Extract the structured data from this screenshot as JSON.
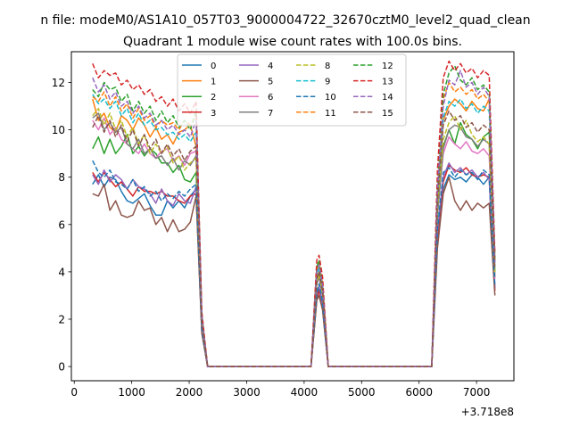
{
  "chart_data": {
    "type": "line",
    "suptitle": "n file: modeM0/AS1A10_057T03_9000004722_32670cztM0_level2_quad_clean",
    "title": "Quadrant 1 module wise count rates with 100.0s bins.",
    "xlabel": "",
    "ylabel": "",
    "x_offset_label": "+3.718e8",
    "xlim": [
      -50,
      7650
    ],
    "ylim": [
      -0.6,
      13.3
    ],
    "x_ticks": [
      0,
      1000,
      2000,
      3000,
      4000,
      5000,
      6000,
      7000
    ],
    "y_ticks": [
      0,
      2,
      4,
      6,
      8,
      10,
      12
    ],
    "grid": false,
    "legend": {
      "placement": "top-center",
      "columns": 4
    },
    "x": [
      320,
      420,
      520,
      620,
      720,
      820,
      920,
      1020,
      1120,
      1220,
      1320,
      1420,
      1520,
      1620,
      1720,
      1820,
      1920,
      2020,
      2120,
      2220,
      2320,
      2420,
      2520,
      2620,
      2720,
      2820,
      2920,
      3020,
      3120,
      3220,
      3320,
      3420,
      3520,
      3620,
      3720,
      3820,
      3920,
      4020,
      4120,
      4220,
      4260,
      4320,
      4420,
      4520,
      4620,
      4720,
      4820,
      4920,
      5020,
      5120,
      5220,
      5320,
      5420,
      5520,
      5620,
      5720,
      5820,
      5920,
      6020,
      6120,
      6220,
      6320,
      6420,
      6520,
      6620,
      6720,
      6820,
      6920,
      7020,
      7120,
      7220,
      7320
    ],
    "series": [
      {
        "name": "0",
        "color": "#1f77b4",
        "dash": "solid",
        "values": [
          7.7,
          8.1,
          7.6,
          8.0,
          7.9,
          7.4,
          7.0,
          6.9,
          7.1,
          7.3,
          6.8,
          6.4,
          6.4,
          7.0,
          6.7,
          7.0,
          6.7,
          7.2,
          7.5,
          1.5,
          0,
          0,
          0,
          0,
          0,
          0,
          0,
          0,
          0,
          0,
          0,
          0,
          0,
          0,
          0,
          0,
          0,
          0,
          0,
          3.0,
          3.3,
          2.7,
          0,
          0,
          0,
          0,
          0,
          0,
          0,
          0,
          0,
          0,
          0,
          0,
          0,
          0,
          0,
          0,
          0,
          0,
          0,
          5.5,
          7.5,
          8.1,
          7.9,
          8.0,
          7.8,
          8.1,
          8.0,
          7.7,
          8.0,
          3.3
        ]
      },
      {
        "name": "1",
        "color": "#ff7f0e",
        "dash": "solid",
        "values": [
          11.3,
          10.4,
          10.7,
          10.1,
          9.9,
          10.6,
          10.4,
          10.0,
          10.5,
          10.2,
          9.7,
          10.1,
          9.6,
          9.8,
          9.4,
          9.9,
          10.0,
          10.2,
          9.3,
          2.0,
          0,
          0,
          0,
          0,
          0,
          0,
          0,
          0,
          0,
          0,
          0,
          0,
          0,
          0,
          0,
          0,
          0,
          0,
          0,
          4.0,
          4.3,
          3.5,
          0,
          0,
          0,
          0,
          0,
          0,
          0,
          0,
          0,
          0,
          0,
          0,
          0,
          0,
          0,
          0,
          0,
          0,
          0,
          7.0,
          10.4,
          11.0,
          11.3,
          11.1,
          10.8,
          11.2,
          10.9,
          10.8,
          11.3,
          4.4
        ]
      },
      {
        "name": "2",
        "color": "#2ca02c",
        "dash": "solid",
        "values": [
          9.2,
          9.7,
          9.0,
          9.6,
          9.0,
          9.3,
          9.8,
          9.0,
          9.3,
          8.9,
          9.2,
          9.0,
          8.6,
          8.6,
          8.2,
          8.5,
          7.9,
          7.8,
          8.2,
          1.9,
          0,
          0,
          0,
          0,
          0,
          0,
          0,
          0,
          0,
          0,
          0,
          0,
          0,
          0,
          0,
          0,
          0,
          0,
          0,
          3.7,
          4.0,
          3.2,
          0,
          0,
          0,
          0,
          0,
          0,
          0,
          0,
          0,
          0,
          0,
          0,
          0,
          0,
          0,
          0,
          0,
          0,
          0,
          6.4,
          9.3,
          10.0,
          9.4,
          10.3,
          9.8,
          9.6,
          9.2,
          9.7,
          9.9,
          4.0
        ]
      },
      {
        "name": "3",
        "color": "#d62728",
        "dash": "solid",
        "values": [
          8.2,
          7.8,
          8.2,
          7.9,
          7.6,
          7.8,
          7.5,
          7.2,
          7.6,
          7.4,
          7.4,
          7.3,
          7.4,
          7.2,
          7.2,
          7.0,
          6.9,
          7.2,
          7.3,
          1.5,
          0,
          0,
          0,
          0,
          0,
          0,
          0,
          0,
          0,
          0,
          0,
          0,
          0,
          0,
          0,
          0,
          0,
          0,
          0,
          2.9,
          3.2,
          2.5,
          0,
          0,
          0,
          0,
          0,
          0,
          0,
          0,
          0,
          0,
          0,
          0,
          0,
          0,
          0,
          0,
          0,
          0,
          0,
          5.5,
          7.8,
          8.5,
          8.3,
          8.2,
          8.4,
          8.1,
          8.0,
          8.1,
          8.0,
          3.2
        ]
      },
      {
        "name": "4",
        "color": "#9467bd",
        "dash": "solid",
        "values": [
          8.1,
          7.7,
          8.3,
          7.8,
          8.1,
          7.9,
          7.5,
          7.9,
          7.6,
          7.5,
          7.3,
          6.9,
          7.5,
          7.0,
          6.8,
          7.3,
          7.0,
          6.9,
          7.6,
          1.6,
          0,
          0,
          0,
          0,
          0,
          0,
          0,
          0,
          0,
          0,
          0,
          0,
          0,
          0,
          0,
          0,
          0,
          0,
          0,
          3.1,
          3.4,
          2.6,
          0,
          0,
          0,
          0,
          0,
          0,
          0,
          0,
          0,
          0,
          0,
          0,
          0,
          0,
          0,
          0,
          0,
          0,
          0,
          5.7,
          8.0,
          8.6,
          8.2,
          8.4,
          8.1,
          8.3,
          8.0,
          8.2,
          7.9,
          3.3
        ]
      },
      {
        "name": "5",
        "color": "#8c564b",
        "dash": "solid",
        "values": [
          7.3,
          7.2,
          7.7,
          6.6,
          7.0,
          6.4,
          6.3,
          6.4,
          7.0,
          6.6,
          6.7,
          6.0,
          6.3,
          5.7,
          6.2,
          5.7,
          5.8,
          6.1,
          7.2,
          1.4,
          0,
          0,
          0,
          0,
          0,
          0,
          0,
          0,
          0,
          0,
          0,
          0,
          0,
          0,
          0,
          0,
          0,
          0,
          0,
          2.8,
          3.0,
          2.4,
          0,
          0,
          0,
          0,
          0,
          0,
          0,
          0,
          0,
          0,
          0,
          0,
          0,
          0,
          0,
          0,
          0,
          0,
          0,
          5.0,
          7.3,
          8.0,
          7.0,
          6.6,
          7.0,
          6.6,
          6.9,
          6.7,
          6.9,
          3.0
        ]
      },
      {
        "name": "6",
        "color": "#e377c2",
        "dash": "solid",
        "values": [
          10.4,
          10.0,
          10.5,
          9.8,
          10.1,
          9.6,
          9.4,
          9.2,
          9.0,
          9.4,
          9.0,
          8.8,
          9.1,
          9.2,
          8.7,
          8.9,
          8.5,
          9.0,
          9.1,
          1.8,
          0,
          0,
          0,
          0,
          0,
          0,
          0,
          0,
          0,
          0,
          0,
          0,
          0,
          0,
          0,
          0,
          0,
          0,
          0,
          3.5,
          3.8,
          3.0,
          0,
          0,
          0,
          0,
          0,
          0,
          0,
          0,
          0,
          0,
          0,
          0,
          0,
          0,
          0,
          0,
          0,
          0,
          0,
          6.5,
          9.0,
          9.7,
          9.4,
          9.2,
          9.5,
          9.1,
          9.0,
          9.2,
          8.9,
          3.7
        ]
      },
      {
        "name": "7",
        "color": "#7f7f7f",
        "dash": "solid",
        "values": [
          10.5,
          10.7,
          10.0,
          10.3,
          9.9,
          10.1,
          9.4,
          9.2,
          9.6,
          9.0,
          9.2,
          8.8,
          8.9,
          8.5,
          8.8,
          8.3,
          8.7,
          8.5,
          8.9,
          1.8,
          0,
          0,
          0,
          0,
          0,
          0,
          0,
          0,
          0,
          0,
          0,
          0,
          0,
          0,
          0,
          0,
          0,
          0,
          0,
          3.5,
          3.8,
          3.0,
          0,
          0,
          0,
          0,
          0,
          0,
          0,
          0,
          0,
          0,
          0,
          0,
          0,
          0,
          0,
          0,
          0,
          0,
          0,
          6.4,
          9.2,
          10.0,
          10.2,
          10.1,
          9.7,
          9.6,
          9.3,
          9.6,
          9.4,
          3.8
        ]
      },
      {
        "name": "8",
        "color": "#bcbd22",
        "dash": "dashed",
        "values": [
          10.6,
          10.9,
          10.2,
          10.7,
          10.0,
          10.4,
          9.7,
          10.1,
          9.4,
          9.8,
          9.0,
          9.4,
          9.0,
          9.3,
          8.6,
          8.9,
          8.3,
          8.6,
          8.8,
          1.9,
          0,
          0,
          0,
          0,
          0,
          0,
          0,
          0,
          0,
          0,
          0,
          0,
          0,
          0,
          0,
          0,
          0,
          0,
          0,
          3.6,
          3.9,
          3.1,
          0,
          0,
          0,
          0,
          0,
          0,
          0,
          0,
          0,
          0,
          0,
          0,
          0,
          0,
          0,
          0,
          0,
          0,
          0,
          6.8,
          9.6,
          10.3,
          10.6,
          10.0,
          10.4,
          9.8,
          9.5,
          9.7,
          9.4,
          3.9
        ]
      },
      {
        "name": "9",
        "color": "#17becf",
        "dash": "dashed",
        "values": [
          11.5,
          11.1,
          11.3,
          10.9,
          11.2,
          10.6,
          10.9,
          10.3,
          10.7,
          10.2,
          10.4,
          10.0,
          10.1,
          9.8,
          9.9,
          9.6,
          9.8,
          9.5,
          9.9,
          2.0,
          0,
          0,
          0,
          0,
          0,
          0,
          0,
          0,
          0,
          0,
          0,
          0,
          0,
          0,
          0,
          0,
          0,
          0,
          0,
          3.9,
          4.2,
          3.4,
          0,
          0,
          0,
          0,
          0,
          0,
          0,
          0,
          0,
          0,
          0,
          0,
          0,
          0,
          0,
          0,
          0,
          0,
          0,
          7.3,
          10.5,
          11.2,
          11.0,
          11.3,
          10.9,
          11.1,
          10.7,
          11.0,
          10.8,
          4.3
        ]
      },
      {
        "name": "10",
        "color": "#1f77b4",
        "dash": "dashed",
        "values": [
          8.7,
          8.2,
          8.0,
          8.3,
          7.8,
          7.7,
          7.5,
          7.9,
          7.4,
          7.6,
          7.2,
          7.4,
          7.0,
          7.3,
          7.1,
          7.4,
          7.2,
          7.5,
          7.7,
          1.6,
          0,
          0,
          0,
          0,
          0,
          0,
          0,
          0,
          0,
          0,
          0,
          0,
          0,
          0,
          0,
          0,
          0,
          0,
          0,
          3.1,
          3.5,
          2.7,
          0,
          0,
          0,
          0,
          0,
          0,
          0,
          0,
          0,
          0,
          0,
          0,
          0,
          0,
          0,
          0,
          0,
          0,
          0,
          5.8,
          8.2,
          8.4,
          8.0,
          8.3,
          8.1,
          8.2,
          7.9,
          8.3,
          8.1,
          3.4
        ]
      },
      {
        "name": "11",
        "color": "#ff7f0e",
        "dash": "dashed",
        "values": [
          11.4,
          11.2,
          11.6,
          11.0,
          11.4,
          10.8,
          11.1,
          10.5,
          10.9,
          10.4,
          10.6,
          10.1,
          10.4,
          10.2,
          10.3,
          10.0,
          10.4,
          10.2,
          10.6,
          2.1,
          0,
          0,
          0,
          0,
          0,
          0,
          0,
          0,
          0,
          0,
          0,
          0,
          0,
          0,
          0,
          0,
          0,
          0,
          0,
          4.1,
          4.4,
          3.5,
          0,
          0,
          0,
          0,
          0,
          0,
          0,
          0,
          0,
          0,
          0,
          0,
          0,
          0,
          0,
          0,
          0,
          0,
          0,
          7.6,
          11.3,
          12.0,
          11.6,
          11.8,
          11.5,
          11.7,
          11.3,
          11.5,
          11.2,
          4.5
        ]
      },
      {
        "name": "12",
        "color": "#2ca02c",
        "dash": "dashed",
        "values": [
          11.7,
          11.4,
          12.0,
          11.7,
          11.8,
          11.2,
          11.5,
          10.8,
          11.2,
          10.7,
          11.0,
          10.4,
          10.8,
          10.3,
          10.6,
          10.1,
          10.4,
          10.0,
          10.8,
          2.2,
          0,
          0,
          0,
          0,
          0,
          0,
          0,
          0,
          0,
          0,
          0,
          0,
          0,
          0,
          0,
          0,
          0,
          0,
          0,
          4.2,
          4.5,
          3.6,
          0,
          0,
          0,
          0,
          0,
          0,
          0,
          0,
          0,
          0,
          0,
          0,
          0,
          0,
          0,
          0,
          0,
          0,
          0,
          7.8,
          11.5,
          12.4,
          12.7,
          12.1,
          11.9,
          12.2,
          11.7,
          11.9,
          11.6,
          4.6
        ]
      },
      {
        "name": "13",
        "color": "#d62728",
        "dash": "dashed",
        "values": [
          12.8,
          12.2,
          12.5,
          12.3,
          12.4,
          11.9,
          12.1,
          11.7,
          11.9,
          11.5,
          11.7,
          11.2,
          11.4,
          11.0,
          11.3,
          10.8,
          11.1,
          10.7,
          11.2,
          2.3,
          0,
          0,
          0,
          0,
          0,
          0,
          0,
          0,
          0,
          0,
          0,
          0,
          0,
          0,
          0,
          0,
          0,
          0,
          0,
          4.5,
          4.7,
          3.8,
          0,
          0,
          0,
          0,
          0,
          0,
          0,
          0,
          0,
          0,
          0,
          0,
          0,
          0,
          0,
          0,
          0,
          0,
          0,
          8.3,
          12.2,
          12.9,
          12.5,
          12.8,
          12.4,
          12.6,
          12.2,
          12.5,
          12.3,
          4.8
        ]
      },
      {
        "name": "14",
        "color": "#9467bd",
        "dash": "dashed",
        "values": [
          12.2,
          11.6,
          11.9,
          11.3,
          11.6,
          11.0,
          11.2,
          10.7,
          11.0,
          10.5,
          10.7,
          10.2,
          10.4,
          10.0,
          10.2,
          9.8,
          10.0,
          9.7,
          10.4,
          2.1,
          0,
          0,
          0,
          0,
          0,
          0,
          0,
          0,
          0,
          0,
          0,
          0,
          0,
          0,
          0,
          0,
          0,
          0,
          0,
          4.0,
          4.3,
          3.4,
          0,
          0,
          0,
          0,
          0,
          0,
          0,
          0,
          0,
          0,
          0,
          0,
          0,
          0,
          0,
          0,
          0,
          0,
          0,
          7.5,
          11.0,
          12.1,
          11.9,
          12.5,
          11.8,
          12.0,
          11.5,
          11.8,
          11.4,
          4.4
        ]
      },
      {
        "name": "15",
        "color": "#8c564b",
        "dash": "dashed",
        "values": [
          10.1,
          10.6,
          9.9,
          10.4,
          9.7,
          10.2,
          9.5,
          10.0,
          9.3,
          9.8,
          9.2,
          9.6,
          9.0,
          9.4,
          8.9,
          9.2,
          8.7,
          9.1,
          9.3,
          1.9,
          0,
          0,
          0,
          0,
          0,
          0,
          0,
          0,
          0,
          0,
          0,
          0,
          0,
          0,
          0,
          0,
          0,
          0,
          0,
          3.7,
          4.0,
          3.2,
          0,
          0,
          0,
          0,
          0,
          0,
          0,
          0,
          0,
          0,
          0,
          0,
          0,
          0,
          0,
          0,
          0,
          0,
          0,
          7.0,
          10.2,
          10.8,
          10.4,
          10.6,
          10.1,
          10.3,
          9.9,
          10.2,
          10.0,
          4.1
        ]
      }
    ]
  }
}
